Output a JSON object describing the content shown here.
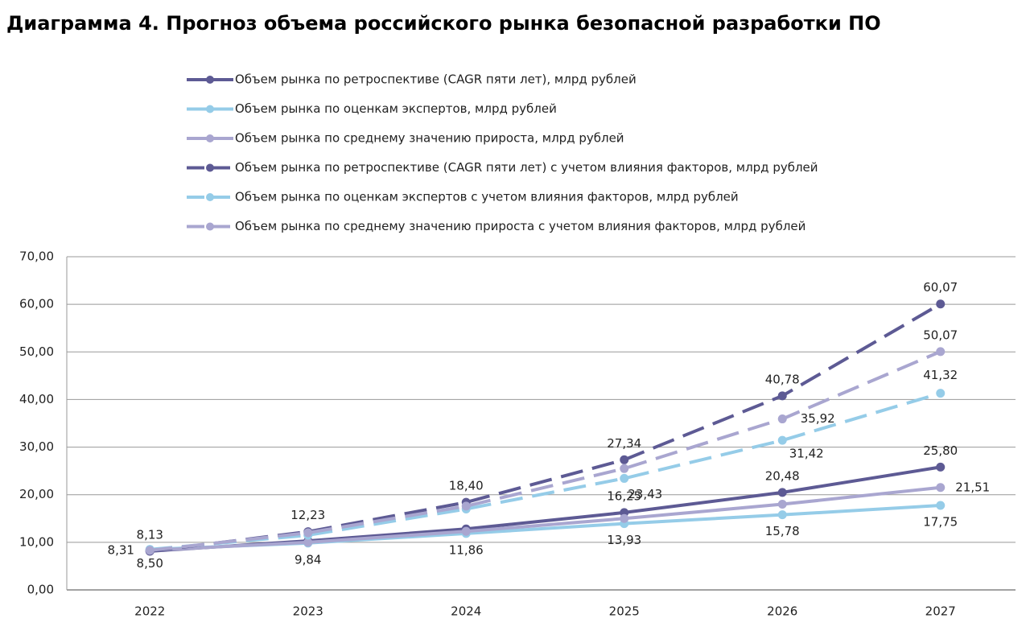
{
  "chart_data": {
    "type": "line",
    "title": "Диаграмма 4. Прогноз объема российского рынка безопасной разработки ПО",
    "categories": [
      "2022",
      "2023",
      "2024",
      "2025",
      "2026",
      "2027"
    ],
    "ylim": [
      0,
      70
    ],
    "yticks": [
      {
        "value": 0,
        "label": "0,00"
      },
      {
        "value": 10,
        "label": "10,00"
      },
      {
        "value": 20,
        "label": "20,00"
      },
      {
        "value": 30,
        "label": "30,00"
      },
      {
        "value": 40,
        "label": "40,00"
      },
      {
        "value": 50,
        "label": "50,00"
      },
      {
        "value": 60,
        "label": "60,00"
      },
      {
        "value": 70,
        "label": "70,00"
      }
    ],
    "grid": true,
    "series": [
      {
        "name": "Объем рынка по ретроспективе (CAGR пяти лет), млрд рублей",
        "color": "#5d5a94",
        "dashed": false,
        "values": [
          8.13,
          10.3,
          12.8,
          16.25,
          20.48,
          25.8
        ],
        "value_labels": [
          "8,13",
          null,
          null,
          "16,25",
          "20,48",
          "25,80"
        ]
      },
      {
        "name": "Объем рынка по оценкам экспертов, млрд рублей",
        "color": "#95cce8",
        "dashed": false,
        "values": [
          8.5,
          9.84,
          11.86,
          13.93,
          15.78,
          17.75
        ],
        "value_labels": [
          "8,50",
          "9,84",
          "11,86",
          "13,93",
          "15,78",
          "17,75"
        ]
      },
      {
        "name": "Объем рынка по среднему значению прироста, млрд рублей",
        "color": "#a9a6d0",
        "dashed": false,
        "values": [
          8.31,
          10.0,
          12.3,
          15.0,
          18.0,
          21.51
        ],
        "value_labels": [
          "8,31",
          null,
          null,
          null,
          null,
          "21,51"
        ]
      },
      {
        "name": "Объем рынка по ретроспективе (CAGR пяти лет) с учетом влияния факторов, млрд рублей",
        "color": "#5d5a94",
        "dashed": true,
        "values": [
          8.13,
          12.23,
          18.4,
          27.34,
          40.78,
          60.07
        ],
        "value_labels": [
          null,
          "12,23",
          "18,40",
          "27,34",
          "40,78",
          "60,07"
        ]
      },
      {
        "name": "Объем рынка по оценкам экспертов с учетом влияния факторов, млрд рублей",
        "color": "#95cce8",
        "dashed": true,
        "values": [
          8.5,
          11.5,
          17.0,
          23.43,
          31.42,
          41.32
        ],
        "value_labels": [
          null,
          null,
          null,
          "23,43",
          "31,42",
          "41,32"
        ]
      },
      {
        "name": "Объем рынка по среднему значению прироста с учетом влияния факторов, млрд рублей",
        "color": "#a9a6d0",
        "dashed": true,
        "values": [
          8.31,
          12.0,
          17.6,
          25.5,
          35.92,
          50.07
        ],
        "value_labels": [
          null,
          null,
          null,
          null,
          "35,92",
          "50,07"
        ]
      }
    ]
  }
}
